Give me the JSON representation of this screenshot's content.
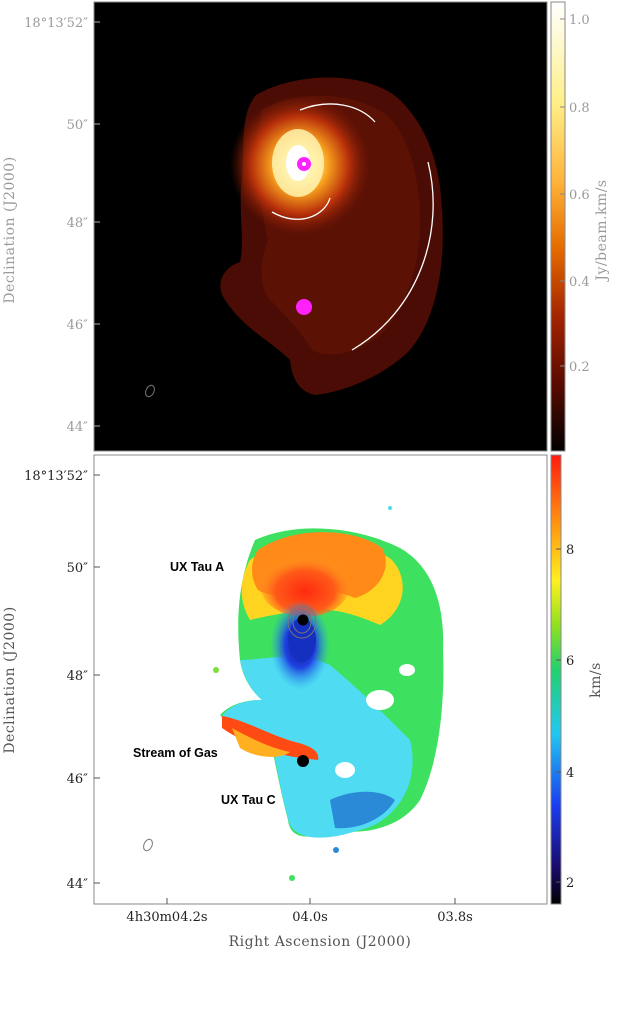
{
  "top_panel": {
    "y_ticks": [
      "18°13′52″",
      "50″",
      "48″",
      "46″",
      "44″"
    ],
    "y_label": "Declination (J2000)",
    "colorbar_ticks": [
      "1.0",
      "0.8",
      "0.6",
      "0.4",
      "0.2"
    ],
    "colorbar_label": "Jy/beam.km/s",
    "colormap": "heat"
  },
  "bottom_panel": {
    "y_ticks": [
      "18°13′52″",
      "50″",
      "48″",
      "46″",
      "44″"
    ],
    "y_label": "Declination (J2000)",
    "x_ticks": [
      "4h30m04.2s",
      "04.0s",
      "03.8s"
    ],
    "x_label": "Right Ascension (J2000)",
    "colorbar_ticks": [
      "8",
      "6",
      "4",
      "2"
    ],
    "colorbar_label": "km/s",
    "colormap": "rainbow",
    "annotations": {
      "ux_tau_a": "UX Tau A",
      "stream": "Stream of Gas",
      "ux_tau_c": "UX Tau C"
    }
  },
  "colors": {
    "top_background": "#000000",
    "source_marker_top": "#ff22ff",
    "source_marker_bottom": "#000000"
  }
}
